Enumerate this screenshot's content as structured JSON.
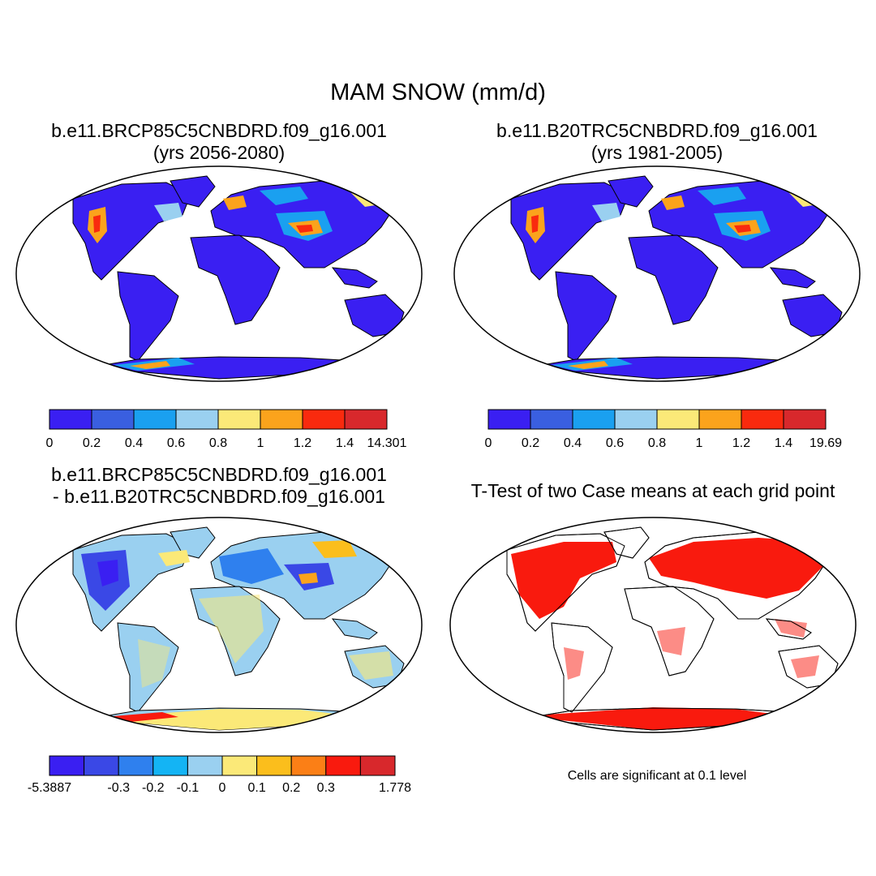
{
  "figure": {
    "title": "MAM SNOW (mm/d)",
    "note": "Cells are significant at 0.1 level"
  },
  "panels": [
    {
      "id": "top-left",
      "title_line1": "b.e11.BRCP85C5CNBDRD.f09_g16.001",
      "title_line2": "(yrs 2056-2080)"
    },
    {
      "id": "top-right",
      "title_line1": "b.e11.B20TRC5CNBDRD.f09_g16.001",
      "title_line2": "(yrs 1981-2005)"
    },
    {
      "id": "bottom-left",
      "title_line1": "b.e11.BRCP85C5CNBDRD.f09_g16.001",
      "title_line2": "- b.e11.B20TRC5CNBDRD.f09_g16.001"
    },
    {
      "id": "bottom-right",
      "title_line1": "T-Test of two Case means at each grid point"
    }
  ],
  "colorbars": {
    "future": {
      "colors": [
        "#3a1ff2",
        "#3a5fe0",
        "#1aa0f0",
        "#9ad0f0",
        "#fbe978",
        "#fba31c",
        "#f92a0e",
        "#d8282c"
      ],
      "labels": [
        "0",
        "0.2",
        "0.4",
        "0.6",
        "0.8",
        "1",
        "1.2",
        "1.4",
        "14.301"
      ]
    },
    "historical": {
      "colors": [
        "#3a1ff2",
        "#3a5fe0",
        "#1aa0f0",
        "#9ad0f0",
        "#fbe978",
        "#fba31c",
        "#f92a0e",
        "#d8282c"
      ],
      "labels": [
        "0",
        "0.2",
        "0.4",
        "0.6",
        "0.8",
        "1",
        "1.2",
        "1.4",
        "19.69"
      ]
    },
    "difference": {
      "colors": [
        "#3a1ff2",
        "#3a48e6",
        "#2f80ee",
        "#14b4f4",
        "#9ad0f0",
        "#fbe978",
        "#fbbe1c",
        "#fb7f16",
        "#f91a0e",
        "#d8282c"
      ],
      "labels": [
        "-5.3887",
        "",
        "-0.3",
        "-0.2",
        "-0.1",
        "0",
        "0.1",
        "0.2",
        "0.3",
        "",
        "1.778"
      ]
    }
  }
}
